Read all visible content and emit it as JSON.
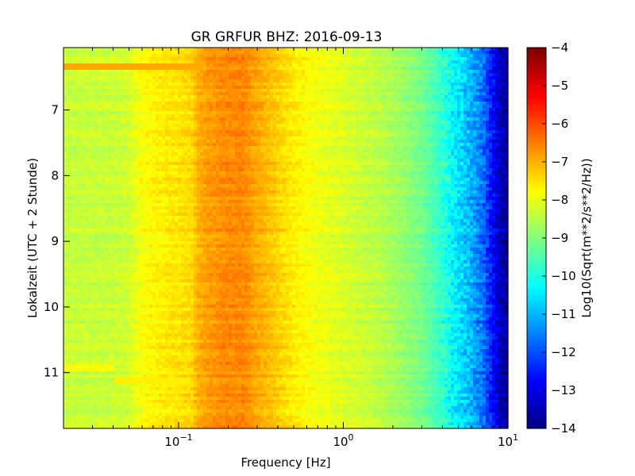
{
  "chart_data": {
    "type": "heatmap",
    "title": "GR GRFUR BHZ: 2016-09-13",
    "xlabel": "Frequency [Hz]",
    "ylabel": "Lokalzeit (UTC + 2 Stunde)",
    "x_scale": "log",
    "xlim": [
      0.02,
      10
    ],
    "ylim": [
      11.85,
      6.05
    ],
    "y_inverted": true,
    "x_ticks": [
      {
        "value": 0.1,
        "base": "10",
        "exp": "−1"
      },
      {
        "value": 1,
        "base": "10",
        "exp": "0"
      },
      {
        "value": 10,
        "base": "10",
        "exp": "1"
      }
    ],
    "y_ticks": [
      {
        "value": 7,
        "label": "7"
      },
      {
        "value": 8,
        "label": "8"
      },
      {
        "value": 9,
        "label": "9"
      },
      {
        "value": 10,
        "label": "10"
      },
      {
        "value": 11,
        "label": "11"
      }
    ],
    "colorbar": {
      "label": "Log10(Sqrt(m**2/s**2/Hz))",
      "colormap": "jet",
      "range": [
        -14,
        -4
      ],
      "ticks": [
        "−4",
        "−5",
        "−6",
        "−7",
        "−8",
        "−9",
        "−10",
        "−11",
        "−12",
        "−13",
        "−14"
      ]
    },
    "spectrum_profile": {
      "frequency_hz": [
        0.02,
        0.03,
        0.04,
        0.05,
        0.06,
        0.08,
        0.1,
        0.12,
        0.13,
        0.15,
        0.2,
        0.25,
        0.3,
        0.4,
        0.5,
        0.7,
        1.0,
        1.5,
        2.0,
        3.0,
        4.0,
        5.0,
        6.0,
        7.0,
        8.0,
        9.0,
        10.0
      ],
      "level_log10": [
        -8.3,
        -8.3,
        -8.3,
        -8.2,
        -7.8,
        -7.6,
        -7.5,
        -7.4,
        -7.0,
        -6.8,
        -6.6,
        -6.6,
        -6.9,
        -7.3,
        -7.6,
        -7.9,
        -8.1,
        -8.35,
        -8.6,
        -9.1,
        -9.8,
        -10.5,
        -11.0,
        -11.6,
        -12.6,
        -13.4,
        -13.8
      ]
    },
    "horizontal_features": [
      {
        "time": 6.35,
        "fmin": 0.02,
        "fmax": 0.14,
        "level_log10": -6.9
      },
      {
        "time": 10.95,
        "fmin": 0.02,
        "fmax": 0.04,
        "level_log10": -7.7
      },
      {
        "time": 11.13,
        "fmin": 0.04,
        "fmax": 0.12,
        "level_log10": -7.6
      }
    ]
  }
}
